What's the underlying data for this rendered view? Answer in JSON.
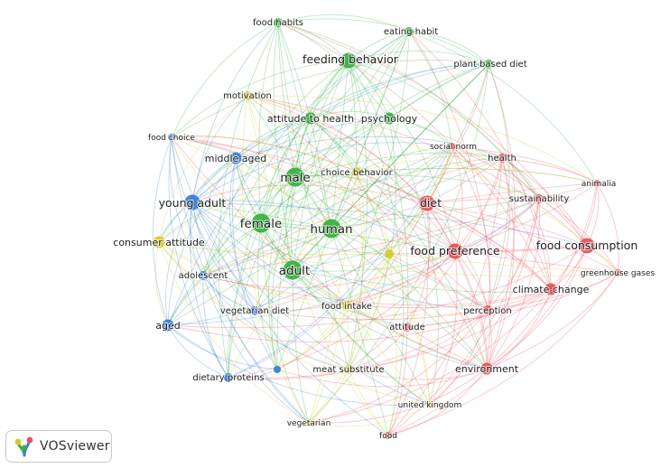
{
  "app": {
    "name": "VOSviewer"
  },
  "colors": {
    "red": "#e8525a",
    "green": "#3cb043",
    "blue": "#3a7fd5",
    "yellow": "#d4cc2a"
  },
  "chart_data": {
    "type": "network",
    "nodes": [
      {
        "id": "food-habits",
        "label": "food habits",
        "cluster": "green",
        "weight": 2
      },
      {
        "id": "eating-habit",
        "label": "eating habit",
        "cluster": "green",
        "weight": 2
      },
      {
        "id": "feeding-behavior",
        "label": "feeding behavior",
        "cluster": "green",
        "weight": 4
      },
      {
        "id": "plant-based-diet",
        "label": "plant based diet",
        "cluster": "green",
        "weight": 2
      },
      {
        "id": "motivation",
        "label": "motivation",
        "cluster": "yellow",
        "weight": 2
      },
      {
        "id": "attitude-to-health",
        "label": "attitude to health",
        "cluster": "green",
        "weight": 3
      },
      {
        "id": "psychology",
        "label": "psychology",
        "cluster": "green",
        "weight": 3
      },
      {
        "id": "food-choice",
        "label": "food choice",
        "cluster": "blue",
        "weight": 1
      },
      {
        "id": "middle-aged",
        "label": "middle aged",
        "cluster": "blue",
        "weight": 3
      },
      {
        "id": "male",
        "label": "male",
        "cluster": "green",
        "weight": 5
      },
      {
        "id": "choice-behavior",
        "label": "choice behavior",
        "cluster": "yellow",
        "weight": 2
      },
      {
        "id": "social-norm",
        "label": "social norm",
        "cluster": "red",
        "weight": 1
      },
      {
        "id": "health",
        "label": "health",
        "cluster": "red",
        "weight": 2
      },
      {
        "id": "animalia",
        "label": "animalia",
        "cluster": "red",
        "weight": 1
      },
      {
        "id": "sustainability",
        "label": "sustainability",
        "cluster": "red",
        "weight": 2
      },
      {
        "id": "diet",
        "label": "diet",
        "cluster": "red",
        "weight": 4
      },
      {
        "id": "young-adult",
        "label": "young adult",
        "cluster": "blue",
        "weight": 4
      },
      {
        "id": "female",
        "label": "female",
        "cluster": "green",
        "weight": 5
      },
      {
        "id": "human",
        "label": "human",
        "cluster": "green",
        "weight": 5
      },
      {
        "id": "consumer-attitude",
        "label": "consumer attitude",
        "cluster": "yellow",
        "weight": 3
      },
      {
        "id": "food-preference",
        "label": "food preference",
        "cluster": "red",
        "weight": 4
      },
      {
        "id": "food-consumption",
        "label": "food consumption",
        "cluster": "red",
        "weight": 4
      },
      {
        "id": "greenhouse-gases",
        "label": "greenhouse gases",
        "cluster": "red",
        "weight": 1
      },
      {
        "id": "adult",
        "label": "adult",
        "cluster": "green",
        "weight": 5
      },
      {
        "id": "adolescent",
        "label": "adolescent",
        "cluster": "blue",
        "weight": 2
      },
      {
        "id": "climate-change",
        "label": "climate change",
        "cluster": "red",
        "weight": 3
      },
      {
        "id": "perception",
        "label": "perception",
        "cluster": "red",
        "weight": 2
      },
      {
        "id": "food-intake",
        "label": "food intake",
        "cluster": "yellow",
        "weight": 2
      },
      {
        "id": "vegetarian-diet",
        "label": "vegetarian diet",
        "cluster": "blue",
        "weight": 2
      },
      {
        "id": "aged",
        "label": "aged",
        "cluster": "blue",
        "weight": 3
      },
      {
        "id": "attitude",
        "label": "attitude",
        "cluster": "red",
        "weight": 2
      },
      {
        "id": "environment",
        "label": "environment",
        "cluster": "red",
        "weight": 3
      },
      {
        "id": "meat-substitute",
        "label": "meat substitute",
        "cluster": "yellow",
        "weight": 2
      },
      {
        "id": "dietary-proteins",
        "label": "dietary proteins",
        "cluster": "blue",
        "weight": 2
      },
      {
        "id": "united-kingdom",
        "label": "united kingdom",
        "cluster": "yellow",
        "weight": 1
      },
      {
        "id": "vegetarian",
        "label": "vegetarian",
        "cluster": "yellow",
        "weight": 1
      },
      {
        "id": "food",
        "label": "food",
        "cluster": "red",
        "weight": 1
      }
    ],
    "extra_nodes": [
      {
        "id": "unlabeled-yellow",
        "cluster": "yellow",
        "weight": 2
      },
      {
        "id": "unlabeled-blue",
        "cluster": "blue",
        "weight": 1
      }
    ]
  }
}
